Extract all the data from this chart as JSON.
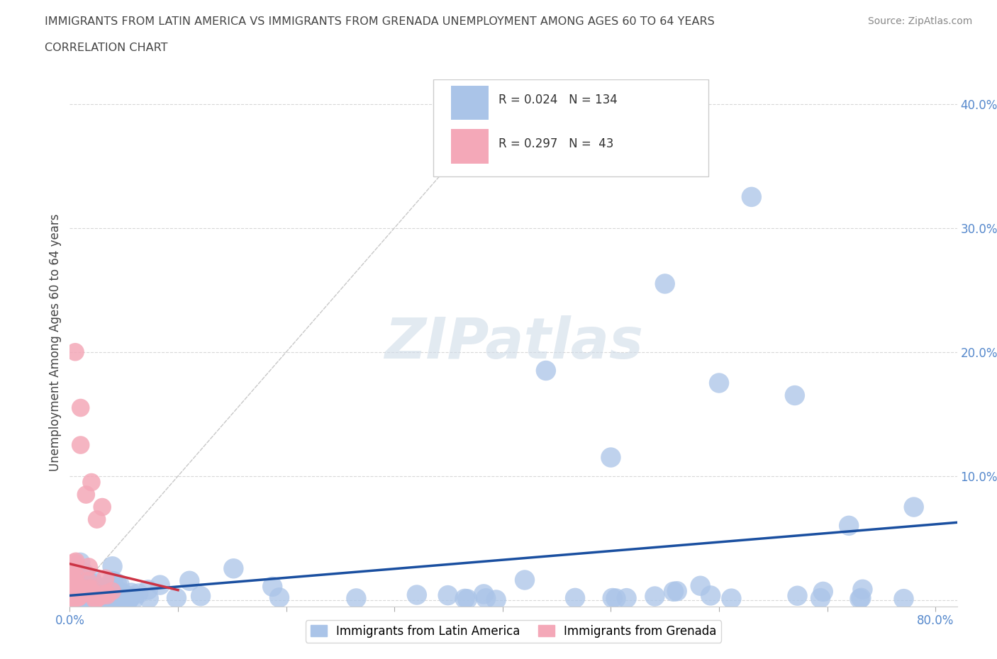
{
  "title_line1": "IMMIGRANTS FROM LATIN AMERICA VS IMMIGRANTS FROM GRENADA UNEMPLOYMENT AMONG AGES 60 TO 64 YEARS",
  "title_line2": "CORRELATION CHART",
  "source_text": "Source: ZipAtlas.com",
  "ylabel": "Unemployment Among Ages 60 to 64 years",
  "xlim": [
    0.0,
    0.82
  ],
  "ylim": [
    -0.005,
    0.42
  ],
  "legend_R1": "0.024",
  "legend_N1": "134",
  "legend_R2": "0.297",
  "legend_N2": "43",
  "series1_color": "#aac4e8",
  "series2_color": "#f4a8b8",
  "trend1_color": "#1a4fa0",
  "trend2_color": "#cc3344",
  "ref_line_color": "#c8c8c8",
  "watermark_color": "#d0dce8",
  "background_color": "#ffffff"
}
